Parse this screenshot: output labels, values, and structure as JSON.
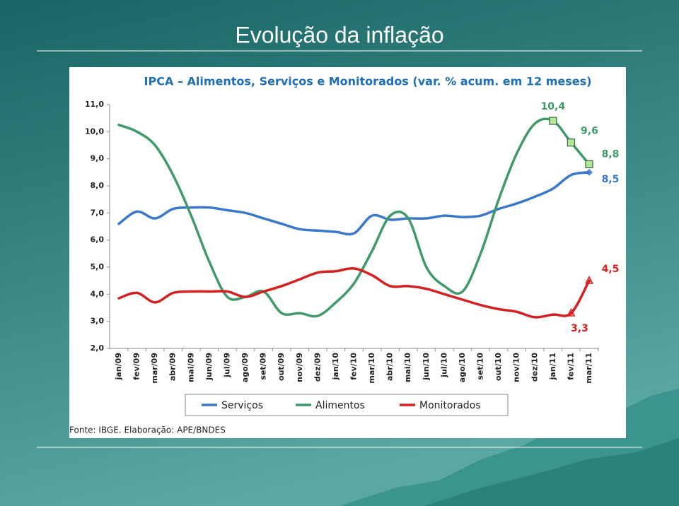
{
  "slide": {
    "title": "Evolução da inflação"
  },
  "chart_data": {
    "type": "line",
    "title": "IPCA – Alimentos, Serviços e Monitorados (var. % acum. em 12 meses)",
    "source": "Fonte: IBGE. Elaboração: APE/BNDES",
    "categories": [
      "jan/09",
      "fev/09",
      "mar/09",
      "abr/09",
      "mai/09",
      "jun/09",
      "jul/09",
      "ago/09",
      "set/09",
      "out/09",
      "nov/09",
      "dez/09",
      "jan/10",
      "fev/10",
      "mar/10",
      "abr/10",
      "mai/10",
      "jun/10",
      "jul/10",
      "ago/10",
      "set/10",
      "out/10",
      "nov/10",
      "dez/10",
      "jan/11",
      "fev/11",
      "mar/11"
    ],
    "ylim": [
      2,
      11
    ],
    "yticks": [
      {
        "value": 2,
        "label": "2,0"
      },
      {
        "value": 3,
        "label": "3,0"
      },
      {
        "value": 4,
        "label": "4,0"
      },
      {
        "value": 5,
        "label": "5,0"
      },
      {
        "value": 6,
        "label": "6,0"
      },
      {
        "value": 7,
        "label": "7,0"
      },
      {
        "value": 8,
        "label": "8,0"
      },
      {
        "value": 9,
        "label": "9,0"
      },
      {
        "value": 10,
        "label": "10,0"
      },
      {
        "value": 11,
        "label": "11,0"
      }
    ],
    "series": [
      {
        "name": "Serviços",
        "color": "#3a78c9",
        "marker": "diamond",
        "values": [
          6.6,
          7.05,
          6.8,
          7.15,
          7.2,
          7.2,
          7.1,
          7.0,
          6.8,
          6.6,
          6.4,
          6.35,
          6.3,
          6.25,
          6.9,
          6.75,
          6.8,
          6.8,
          6.9,
          6.85,
          6.9,
          7.15,
          7.35,
          7.6,
          7.9,
          8.4,
          8.5
        ],
        "value_labels": [
          null,
          null,
          null,
          null,
          null,
          null,
          null,
          null,
          null,
          null,
          null,
          null,
          null,
          null,
          null,
          null,
          null,
          null,
          null,
          null,
          null,
          null,
          null,
          null,
          null,
          null,
          "8,5"
        ]
      },
      {
        "name": "Alimentos",
        "color": "#3f9a6a",
        "marker": "square",
        "values": [
          10.25,
          10.0,
          9.5,
          8.4,
          6.9,
          5.2,
          3.9,
          3.9,
          4.1,
          3.3,
          3.3,
          3.2,
          3.7,
          4.4,
          5.6,
          6.9,
          6.8,
          5.0,
          4.3,
          4.1,
          5.5,
          7.5,
          9.2,
          10.3,
          10.4,
          9.6,
          8.8
        ],
        "value_labels": [
          null,
          null,
          null,
          null,
          null,
          null,
          null,
          null,
          null,
          null,
          null,
          null,
          null,
          null,
          null,
          null,
          null,
          null,
          null,
          null,
          null,
          null,
          null,
          null,
          "10,4",
          "9,6",
          "8,8"
        ]
      },
      {
        "name": "Monitorados",
        "color": "#d42020",
        "marker": "triangle",
        "values": [
          3.85,
          4.05,
          3.7,
          4.05,
          4.1,
          4.1,
          4.1,
          3.9,
          4.1,
          4.3,
          4.55,
          4.8,
          4.85,
          4.95,
          4.7,
          4.3,
          4.3,
          4.2,
          4.0,
          3.8,
          3.6,
          3.45,
          3.35,
          3.15,
          3.25,
          3.3,
          4.5
        ],
        "value_labels": [
          null,
          null,
          null,
          null,
          null,
          null,
          null,
          null,
          null,
          null,
          null,
          null,
          null,
          null,
          null,
          null,
          null,
          null,
          null,
          null,
          null,
          null,
          null,
          null,
          null,
          "3,3",
          "4,5"
        ]
      }
    ]
  }
}
